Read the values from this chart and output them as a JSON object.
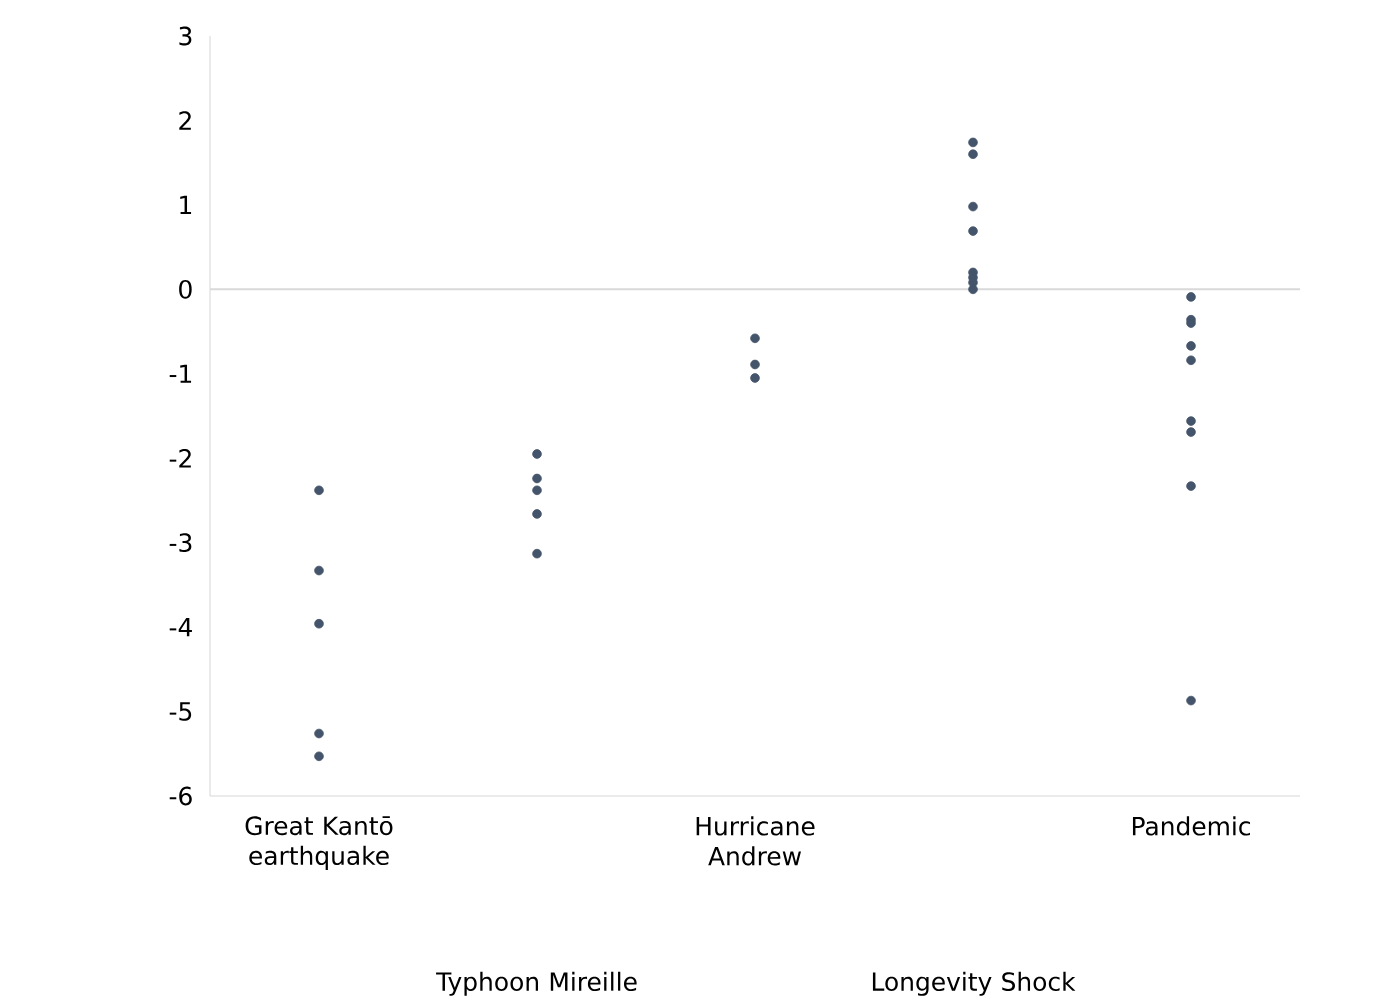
{
  "chart_data": {
    "type": "scatter",
    "categories": [
      "Great Kantō earthquake",
      "Typhoon Mireille",
      "Hurricane Andrew",
      "Longevity Shock",
      "Pandemic"
    ],
    "series": [
      {
        "color": "#44546a",
        "x": [
          "Great Kantō earthquake",
          "Great Kantō earthquake",
          "Great Kantō earthquake",
          "Great Kantō earthquake",
          "Great Kantō earthquake",
          "Typhoon Mireille",
          "Typhoon Mireille",
          "Typhoon Mireille",
          "Typhoon Mireille",
          "Typhoon Mireille",
          "Hurricane Andrew",
          "Hurricane Andrew",
          "Hurricane Andrew",
          "Longevity Shock",
          "Longevity Shock",
          "Longevity Shock",
          "Longevity Shock",
          "Longevity Shock",
          "Longevity Shock",
          "Longevity Shock",
          "Longevity Shock",
          "Pandemic",
          "Pandemic",
          "Pandemic",
          "Pandemic",
          "Pandemic",
          "Pandemic",
          "Pandemic",
          "Pandemic",
          "Pandemic"
        ],
        "values": [
          -2.38,
          -3.33,
          -3.96,
          -5.26,
          -5.53,
          -1.95,
          -2.24,
          -2.38,
          -2.66,
          -3.13,
          -0.58,
          -0.89,
          -1.05,
          1.74,
          1.6,
          0.98,
          0.69,
          0.2,
          0.14,
          0.08,
          0.0,
          -0.09,
          -0.36,
          -0.4,
          -0.67,
          -0.84,
          -1.56,
          -1.69,
          -2.33,
          -4.87
        ]
      }
    ],
    "ylim": [
      -6,
      3
    ],
    "yticks": [
      -6,
      -5,
      -4,
      -3,
      -2,
      -1,
      0,
      1,
      2,
      3
    ],
    "ref_lines": [
      {
        "axis": "y",
        "value": 0,
        "color": "#d9d9d9"
      }
    ]
  }
}
